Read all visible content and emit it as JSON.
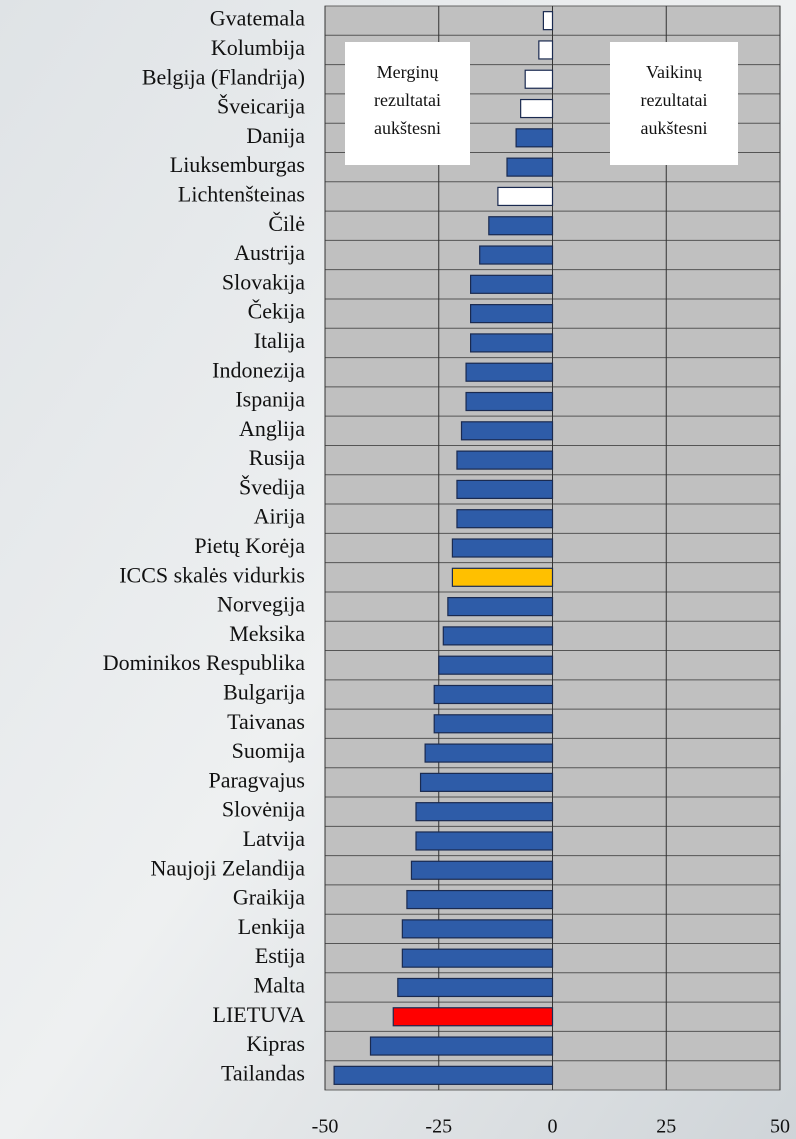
{
  "chart_data": {
    "type": "barh",
    "categories": [
      "Gvatemala",
      "Kolumbija",
      "Belgija (Flandrija)",
      "Šveicarija",
      "Danija",
      "Liuksemburgas",
      "Lichtenšteinas",
      "Čilė",
      "Austrija",
      "Slovakija",
      "Čekija",
      "Italija",
      "Indonezija",
      "Ispanija",
      "Anglija",
      "Rusija",
      "Švedija",
      "Airija",
      "Pietų Korėja",
      "ICCS skalės vidurkis",
      "Norvegija",
      "Meksika",
      "Dominikos Respublika",
      "Bulgarija",
      "Taivanas",
      "Suomija",
      "Paragvajus",
      "Slovėnija",
      "Latvija",
      "Naujoji Zelandija",
      "Graikija",
      "Lenkija",
      "Estija",
      "Malta",
      "LIETUVA",
      "Kipras",
      "Tailandas"
    ],
    "values": [
      -2,
      -3,
      -6,
      -7,
      -8,
      -10,
      -12,
      -14,
      -16,
      -18,
      -18,
      -18,
      -19,
      -19,
      -20,
      -21,
      -21,
      -21,
      -22,
      -22,
      -23,
      -24,
      -25,
      -26,
      -26,
      -28,
      -29,
      -30,
      -30,
      -31,
      -32,
      -33,
      -33,
      -34,
      -35,
      -40,
      -48
    ],
    "colors": [
      "#ffffff",
      "#ffffff",
      "#ffffff",
      "#ffffff",
      "#2e5ca8",
      "#2e5ca8",
      "#ffffff",
      "#2e5ca8",
      "#2e5ca8",
      "#2e5ca8",
      "#2e5ca8",
      "#2e5ca8",
      "#2e5ca8",
      "#2e5ca8",
      "#2e5ca8",
      "#2e5ca8",
      "#2e5ca8",
      "#2e5ca8",
      "#2e5ca8",
      "#ffc000",
      "#2e5ca8",
      "#2e5ca8",
      "#2e5ca8",
      "#2e5ca8",
      "#2e5ca8",
      "#2e5ca8",
      "#2e5ca8",
      "#2e5ca8",
      "#2e5ca8",
      "#2e5ca8",
      "#2e5ca8",
      "#2e5ca8",
      "#2e5ca8",
      "#2e5ca8",
      "#ff0000",
      "#2e5ca8",
      "#2e5ca8"
    ],
    "xlim": [
      -50,
      50
    ],
    "xticks": [
      -50,
      -25,
      0,
      25,
      50
    ],
    "grid": true,
    "annotations": [
      {
        "lines": [
          "Merginų",
          "rezultatai",
          "aukštesni"
        ]
      },
      {
        "lines": [
          "Vaikinų",
          "rezultatai",
          "aukštesni"
        ]
      }
    ]
  }
}
